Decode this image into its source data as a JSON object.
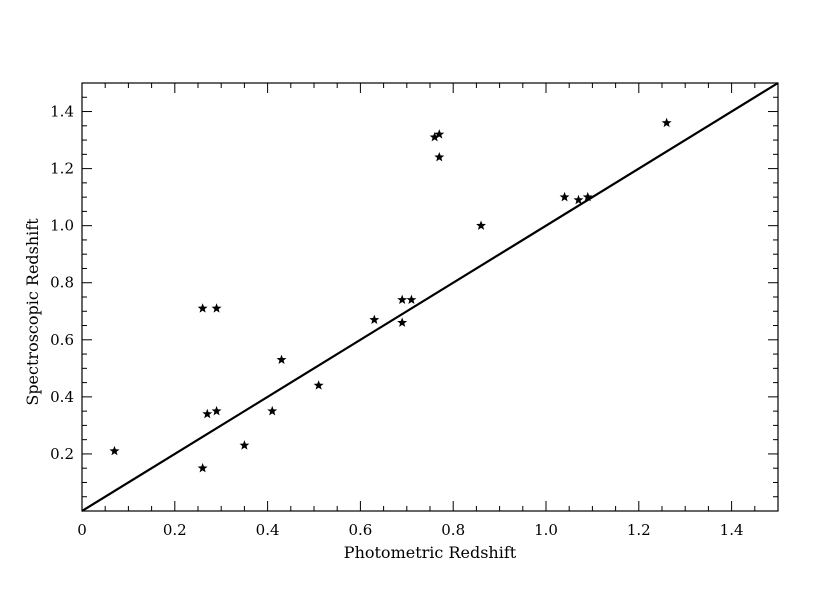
{
  "chart_data": {
    "type": "scatter",
    "xlabel": "Photometric Redshift",
    "ylabel": "Spectroscopic Redshift",
    "xlim": [
      0,
      1.5
    ],
    "ylim": [
      0,
      1.5
    ],
    "x_ticks": [
      0,
      0.2,
      0.4,
      0.6,
      0.8,
      1.0,
      1.2,
      1.4
    ],
    "x_tick_labels": [
      "0",
      "0.2",
      "0.4",
      "0.6",
      "0.8",
      "1.0",
      "1.2",
      "1.4"
    ],
    "y_ticks": [
      0.2,
      0.4,
      0.6,
      0.8,
      1.0,
      1.2,
      1.4
    ],
    "y_tick_labels": [
      "0.2",
      "0.4",
      "0.6",
      "0.8",
      "1.0",
      "1.2",
      "1.4"
    ],
    "grid": false,
    "marker": "star",
    "color": "#000000",
    "points": [
      {
        "x": 0.07,
        "y": 0.21
      },
      {
        "x": 0.26,
        "y": 0.15
      },
      {
        "x": 0.26,
        "y": 0.71
      },
      {
        "x": 0.29,
        "y": 0.71
      },
      {
        "x": 0.27,
        "y": 0.34
      },
      {
        "x": 0.29,
        "y": 0.35
      },
      {
        "x": 0.35,
        "y": 0.23
      },
      {
        "x": 0.41,
        "y": 0.35
      },
      {
        "x": 0.43,
        "y": 0.53
      },
      {
        "x": 0.51,
        "y": 0.44
      },
      {
        "x": 0.63,
        "y": 0.67
      },
      {
        "x": 0.69,
        "y": 0.74
      },
      {
        "x": 0.71,
        "y": 0.74
      },
      {
        "x": 0.69,
        "y": 0.66
      },
      {
        "x": 0.76,
        "y": 1.31
      },
      {
        "x": 0.77,
        "y": 1.32
      },
      {
        "x": 0.77,
        "y": 1.24
      },
      {
        "x": 0.86,
        "y": 1.0
      },
      {
        "x": 1.04,
        "y": 1.1
      },
      {
        "x": 1.07,
        "y": 1.09
      },
      {
        "x": 1.09,
        "y": 1.1
      },
      {
        "x": 1.26,
        "y": 1.36
      }
    ],
    "reference_line": {
      "x": [
        0,
        1.5
      ],
      "y": [
        0,
        1.5
      ]
    }
  }
}
